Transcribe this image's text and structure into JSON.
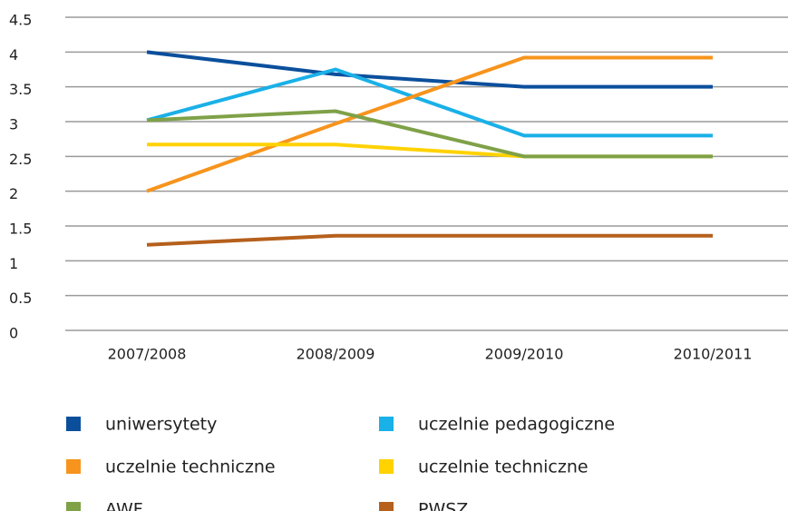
{
  "chart_data": {
    "type": "line",
    "categories": [
      "2007/2008",
      "2008/2009",
      "2009/2010",
      "2010/2011"
    ],
    "series": [
      {
        "name": "uniwersytety",
        "color": "#0b4f9c",
        "values": [
          4.0,
          3.68,
          3.5,
          3.5
        ]
      },
      {
        "name": "uczelnie pedagogiczne",
        "color": "#1ab0e8",
        "values": [
          3.02,
          3.75,
          2.8,
          2.8
        ]
      },
      {
        "name": "uczelnie techniczne",
        "color": "#f7941d",
        "values": [
          2.0,
          2.97,
          3.92,
          3.92
        ]
      },
      {
        "name": "uczelnie techniczne",
        "color": "#ffd200",
        "values": [
          2.67,
          2.67,
          2.5,
          2.5
        ]
      },
      {
        "name": "AWF",
        "color": "#7fa148",
        "values": [
          3.02,
          3.15,
          2.5,
          2.5
        ]
      },
      {
        "name": "PWSZ",
        "color": "#b5601c",
        "values": [
          1.23,
          1.36,
          1.36,
          1.36
        ]
      }
    ],
    "ylim": [
      0,
      4.5
    ],
    "yticks": [
      0,
      0.5,
      1,
      1.5,
      2,
      2.5,
      3,
      3.5,
      4,
      4.5
    ],
    "grid": true
  }
}
